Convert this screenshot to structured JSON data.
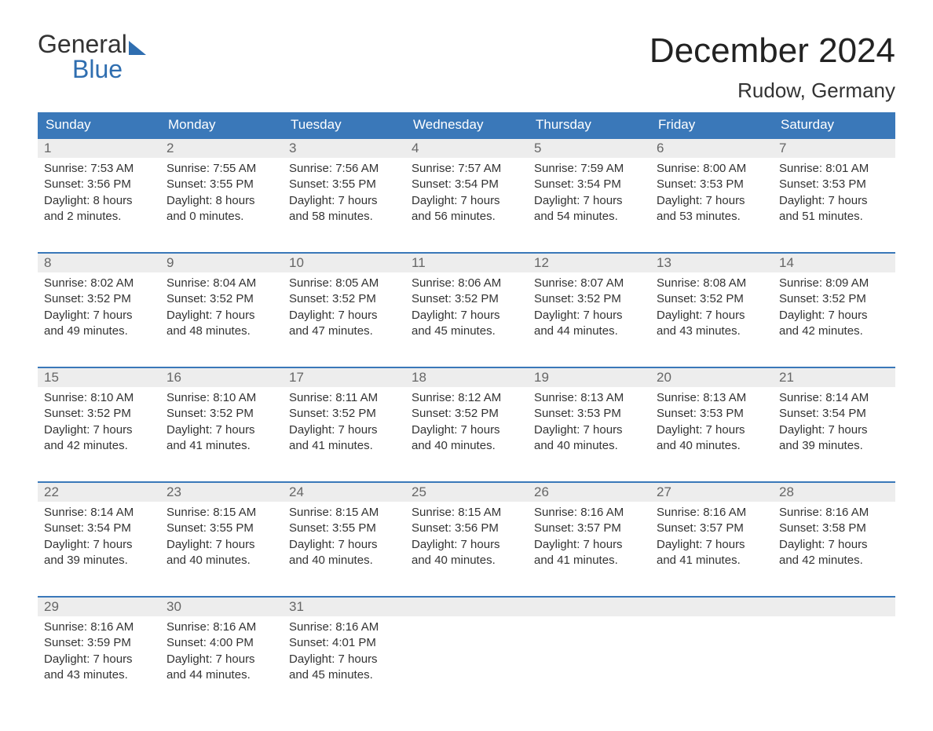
{
  "logo": {
    "part1": "General",
    "part2": "Blue"
  },
  "title": "December 2024",
  "location": "Rudow, Germany",
  "colors": {
    "headerBg": "#3a78b9",
    "headerText": "#ffffff",
    "daynumBg": "#ededed",
    "daynumText": "#666666",
    "bodyText": "#333333",
    "logoBlue": "#2f6eb0",
    "pageBg": "#ffffff"
  },
  "weekdays": [
    "Sunday",
    "Monday",
    "Tuesday",
    "Wednesday",
    "Thursday",
    "Friday",
    "Saturday"
  ],
  "weeks": [
    [
      {
        "n": "1",
        "sunrise": "Sunrise: 7:53 AM",
        "sunset": "Sunset: 3:56 PM",
        "dl1": "Daylight: 8 hours",
        "dl2": "and 2 minutes."
      },
      {
        "n": "2",
        "sunrise": "Sunrise: 7:55 AM",
        "sunset": "Sunset: 3:55 PM",
        "dl1": "Daylight: 8 hours",
        "dl2": "and 0 minutes."
      },
      {
        "n": "3",
        "sunrise": "Sunrise: 7:56 AM",
        "sunset": "Sunset: 3:55 PM",
        "dl1": "Daylight: 7 hours",
        "dl2": "and 58 minutes."
      },
      {
        "n": "4",
        "sunrise": "Sunrise: 7:57 AM",
        "sunset": "Sunset: 3:54 PM",
        "dl1": "Daylight: 7 hours",
        "dl2": "and 56 minutes."
      },
      {
        "n": "5",
        "sunrise": "Sunrise: 7:59 AM",
        "sunset": "Sunset: 3:54 PM",
        "dl1": "Daylight: 7 hours",
        "dl2": "and 54 minutes."
      },
      {
        "n": "6",
        "sunrise": "Sunrise: 8:00 AM",
        "sunset": "Sunset: 3:53 PM",
        "dl1": "Daylight: 7 hours",
        "dl2": "and 53 minutes."
      },
      {
        "n": "7",
        "sunrise": "Sunrise: 8:01 AM",
        "sunset": "Sunset: 3:53 PM",
        "dl1": "Daylight: 7 hours",
        "dl2": "and 51 minutes."
      }
    ],
    [
      {
        "n": "8",
        "sunrise": "Sunrise: 8:02 AM",
        "sunset": "Sunset: 3:52 PM",
        "dl1": "Daylight: 7 hours",
        "dl2": "and 49 minutes."
      },
      {
        "n": "9",
        "sunrise": "Sunrise: 8:04 AM",
        "sunset": "Sunset: 3:52 PM",
        "dl1": "Daylight: 7 hours",
        "dl2": "and 48 minutes."
      },
      {
        "n": "10",
        "sunrise": "Sunrise: 8:05 AM",
        "sunset": "Sunset: 3:52 PM",
        "dl1": "Daylight: 7 hours",
        "dl2": "and 47 minutes."
      },
      {
        "n": "11",
        "sunrise": "Sunrise: 8:06 AM",
        "sunset": "Sunset: 3:52 PM",
        "dl1": "Daylight: 7 hours",
        "dl2": "and 45 minutes."
      },
      {
        "n": "12",
        "sunrise": "Sunrise: 8:07 AM",
        "sunset": "Sunset: 3:52 PM",
        "dl1": "Daylight: 7 hours",
        "dl2": "and 44 minutes."
      },
      {
        "n": "13",
        "sunrise": "Sunrise: 8:08 AM",
        "sunset": "Sunset: 3:52 PM",
        "dl1": "Daylight: 7 hours",
        "dl2": "and 43 minutes."
      },
      {
        "n": "14",
        "sunrise": "Sunrise: 8:09 AM",
        "sunset": "Sunset: 3:52 PM",
        "dl1": "Daylight: 7 hours",
        "dl2": "and 42 minutes."
      }
    ],
    [
      {
        "n": "15",
        "sunrise": "Sunrise: 8:10 AM",
        "sunset": "Sunset: 3:52 PM",
        "dl1": "Daylight: 7 hours",
        "dl2": "and 42 minutes."
      },
      {
        "n": "16",
        "sunrise": "Sunrise: 8:10 AM",
        "sunset": "Sunset: 3:52 PM",
        "dl1": "Daylight: 7 hours",
        "dl2": "and 41 minutes."
      },
      {
        "n": "17",
        "sunrise": "Sunrise: 8:11 AM",
        "sunset": "Sunset: 3:52 PM",
        "dl1": "Daylight: 7 hours",
        "dl2": "and 41 minutes."
      },
      {
        "n": "18",
        "sunrise": "Sunrise: 8:12 AM",
        "sunset": "Sunset: 3:52 PM",
        "dl1": "Daylight: 7 hours",
        "dl2": "and 40 minutes."
      },
      {
        "n": "19",
        "sunrise": "Sunrise: 8:13 AM",
        "sunset": "Sunset: 3:53 PM",
        "dl1": "Daylight: 7 hours",
        "dl2": "and 40 minutes."
      },
      {
        "n": "20",
        "sunrise": "Sunrise: 8:13 AM",
        "sunset": "Sunset: 3:53 PM",
        "dl1": "Daylight: 7 hours",
        "dl2": "and 40 minutes."
      },
      {
        "n": "21",
        "sunrise": "Sunrise: 8:14 AM",
        "sunset": "Sunset: 3:54 PM",
        "dl1": "Daylight: 7 hours",
        "dl2": "and 39 minutes."
      }
    ],
    [
      {
        "n": "22",
        "sunrise": "Sunrise: 8:14 AM",
        "sunset": "Sunset: 3:54 PM",
        "dl1": "Daylight: 7 hours",
        "dl2": "and 39 minutes."
      },
      {
        "n": "23",
        "sunrise": "Sunrise: 8:15 AM",
        "sunset": "Sunset: 3:55 PM",
        "dl1": "Daylight: 7 hours",
        "dl2": "and 40 minutes."
      },
      {
        "n": "24",
        "sunrise": "Sunrise: 8:15 AM",
        "sunset": "Sunset: 3:55 PM",
        "dl1": "Daylight: 7 hours",
        "dl2": "and 40 minutes."
      },
      {
        "n": "25",
        "sunrise": "Sunrise: 8:15 AM",
        "sunset": "Sunset: 3:56 PM",
        "dl1": "Daylight: 7 hours",
        "dl2": "and 40 minutes."
      },
      {
        "n": "26",
        "sunrise": "Sunrise: 8:16 AM",
        "sunset": "Sunset: 3:57 PM",
        "dl1": "Daylight: 7 hours",
        "dl2": "and 41 minutes."
      },
      {
        "n": "27",
        "sunrise": "Sunrise: 8:16 AM",
        "sunset": "Sunset: 3:57 PM",
        "dl1": "Daylight: 7 hours",
        "dl2": "and 41 minutes."
      },
      {
        "n": "28",
        "sunrise": "Sunrise: 8:16 AM",
        "sunset": "Sunset: 3:58 PM",
        "dl1": "Daylight: 7 hours",
        "dl2": "and 42 minutes."
      }
    ],
    [
      {
        "n": "29",
        "sunrise": "Sunrise: 8:16 AM",
        "sunset": "Sunset: 3:59 PM",
        "dl1": "Daylight: 7 hours",
        "dl2": "and 43 minutes."
      },
      {
        "n": "30",
        "sunrise": "Sunrise: 8:16 AM",
        "sunset": "Sunset: 4:00 PM",
        "dl1": "Daylight: 7 hours",
        "dl2": "and 44 minutes."
      },
      {
        "n": "31",
        "sunrise": "Sunrise: 8:16 AM",
        "sunset": "Sunset: 4:01 PM",
        "dl1": "Daylight: 7 hours",
        "dl2": "and 45 minutes."
      },
      null,
      null,
      null,
      null
    ]
  ]
}
